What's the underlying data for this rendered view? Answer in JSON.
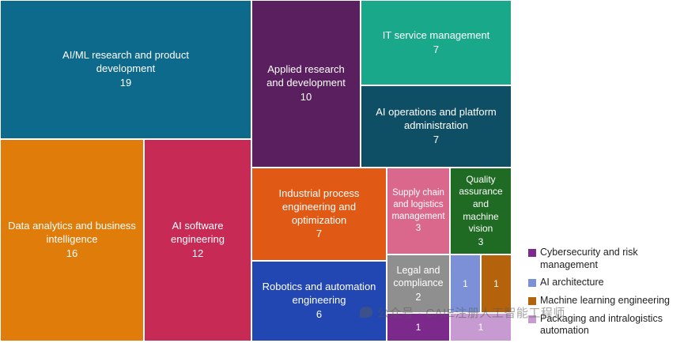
{
  "chart_data": {
    "type": "treemap",
    "items": [
      {
        "label": "AI/ML research and product development",
        "value": 19,
        "color": "#0e6a8c"
      },
      {
        "label": "Applied research and development",
        "value": 10,
        "color": "#5a1f5e"
      },
      {
        "label": "IT service management",
        "value": 7,
        "color": "#1aa88a"
      },
      {
        "label": "AI operations and platform administration",
        "value": 7,
        "color": "#0f4f66"
      },
      {
        "label": "Data analytics and business intelligence",
        "value": 16,
        "color": "#e07c0a"
      },
      {
        "label": "AI software engineering",
        "value": 12,
        "color": "#c62a55"
      },
      {
        "label": "Industrial process engineering and optimization",
        "value": 7,
        "color": "#e05a16"
      },
      {
        "label": "Supply chain and logistics management",
        "value": 3,
        "color": "#d9688c"
      },
      {
        "label": "Quality assurance and machine vision",
        "value": 3,
        "color": "#1f6b24"
      },
      {
        "label": "Robotics and automation engineering",
        "value": 6,
        "color": "#2347b2"
      },
      {
        "label": "Legal and compliance",
        "value": 2,
        "color": "#8f8f8f"
      },
      {
        "label": "AI architecture",
        "value": 1,
        "color": "#7b90d6"
      },
      {
        "label": "Machine learning engineering",
        "value": 1,
        "color": "#b5620c"
      },
      {
        "label": "Cybersecurity and risk management",
        "value": 1,
        "color": "#7b2a8c"
      },
      {
        "label": "Packaging and intralogistics automation",
        "value": 1,
        "color": "#c79bd1"
      }
    ],
    "legend": [
      {
        "label": "Cybersecurity and risk management",
        "color": "#7b2a8c"
      },
      {
        "label": "AI architecture",
        "color": "#7b90d6"
      },
      {
        "label": "Machine learning engineering",
        "color": "#b5620c"
      },
      {
        "label": "Packaging and intralogistics automation",
        "color": "#c79bd1"
      }
    ],
    "legend_position": "bottom-right"
  },
  "watermark": "公众号 · CAIE注册人工智能工程师"
}
